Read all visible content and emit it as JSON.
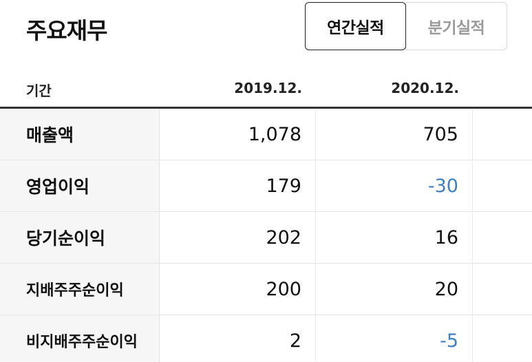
{
  "header": {
    "title": "주요재무",
    "tabs": [
      {
        "label": "연간실적",
        "active": true
      },
      {
        "label": "분기실적",
        "active": false
      }
    ]
  },
  "table": {
    "columns": [
      "기간",
      "2019.12.",
      "2020.12."
    ],
    "rows": [
      {
        "label": "매출액",
        "values": [
          "1,078",
          "705"
        ]
      },
      {
        "label": "영업이익",
        "values": [
          "179",
          "-30"
        ]
      },
      {
        "label": "당기순이익",
        "values": [
          "202",
          "16"
        ]
      },
      {
        "label": "지배주주순이익",
        "values": [
          "200",
          "20"
        ]
      },
      {
        "label": "비지배주주순이익",
        "values": [
          "2",
          "-5"
        ]
      }
    ]
  },
  "colors": {
    "negative": "#3d7fc1",
    "label_bg": "#f6f6f6",
    "rule": "#333333"
  }
}
